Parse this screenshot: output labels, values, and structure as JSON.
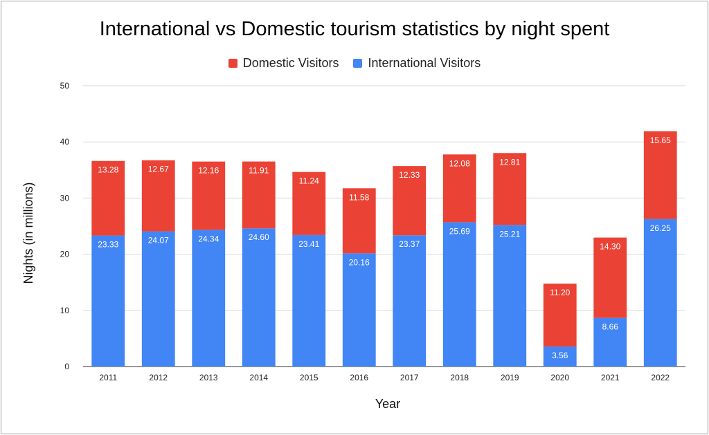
{
  "chart_data": {
    "type": "bar",
    "stacked": true,
    "title": "International vs Domestic tourism statistics by night spent",
    "xlabel": "Year",
    "ylabel": "Nights (in millions)",
    "ylim": [
      0,
      50
    ],
    "yticks": [
      "0",
      "10",
      "20",
      "30",
      "40",
      "50"
    ],
    "grid": true,
    "legend_position": "top",
    "categories": [
      "2011",
      "2012",
      "2013",
      "2014",
      "2015",
      "2016",
      "2017",
      "2018",
      "2019",
      "2020",
      "2021",
      "2022"
    ],
    "series": [
      {
        "name": "International Visitors",
        "color": "#4285f4",
        "values": [
          23.33,
          24.07,
          24.34,
          24.6,
          23.41,
          20.16,
          23.37,
          25.69,
          25.21,
          3.56,
          8.66,
          26.25
        ],
        "labels": [
          "23.33",
          "24.07",
          "24.34",
          "24.60",
          "23.41",
          "20.16",
          "23.37",
          "25.69",
          "25.21",
          "3.56",
          "8.66",
          "26.25"
        ]
      },
      {
        "name": "Domestic Visitors",
        "color": "#ea4335",
        "values": [
          13.28,
          12.67,
          12.16,
          11.91,
          11.24,
          11.58,
          12.33,
          12.08,
          12.81,
          11.2,
          14.3,
          15.65
        ],
        "labels": [
          "13.28",
          "12.67",
          "12.16",
          "11.91",
          "11.24",
          "11.58",
          "12.33",
          "12.08",
          "12.81",
          "11.20",
          "14.30",
          "15.65"
        ]
      }
    ],
    "legend_order": [
      "Domestic Visitors",
      "International Visitors"
    ]
  }
}
